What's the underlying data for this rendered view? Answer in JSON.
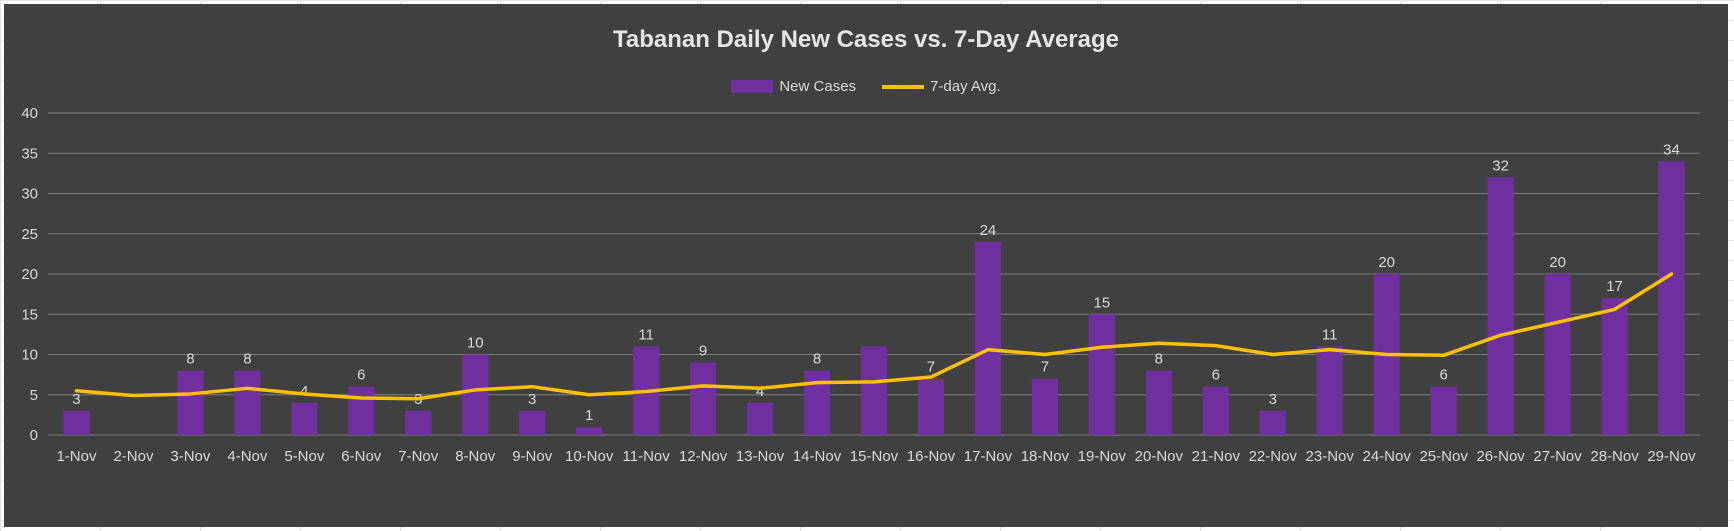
{
  "chart_data": {
    "type": "bar",
    "title": "Tabanan Daily New Cases vs. 7-Day Average",
    "categories": [
      "1-Nov",
      "2-Nov",
      "3-Nov",
      "4-Nov",
      "5-Nov",
      "6-Nov",
      "7-Nov",
      "8-Nov",
      "9-Nov",
      "10-Nov",
      "11-Nov",
      "12-Nov",
      "13-Nov",
      "14-Nov",
      "15-Nov",
      "16-Nov",
      "17-Nov",
      "18-Nov",
      "19-Nov",
      "20-Nov",
      "21-Nov",
      "22-Nov",
      "23-Nov",
      "24-Nov",
      "25-Nov",
      "26-Nov",
      "27-Nov",
      "28-Nov",
      "29-Nov"
    ],
    "series": [
      {
        "name": "New Cases",
        "type": "bar",
        "color": "#7030a0",
        "values": [
          3,
          0,
          8,
          8,
          4,
          6,
          3,
          10,
          3,
          1,
          11,
          9,
          4,
          8,
          11,
          7,
          24,
          7,
          15,
          8,
          6,
          3,
          11,
          20,
          6,
          32,
          20,
          17,
          34
        ],
        "labels": [
          "3",
          "",
          "8",
          "8",
          "4",
          "6",
          "3",
          "10",
          "3",
          "1",
          "11",
          "9",
          "4",
          "8",
          "",
          "7",
          "24",
          "7",
          "15",
          "8",
          "6",
          "3",
          "11",
          "20",
          "6",
          "32",
          "20",
          "17",
          "34"
        ]
      },
      {
        "name": "7-day Avg.",
        "type": "line",
        "color": "#ffc000",
        "values": [
          5.5,
          4.9,
          5.1,
          5.8,
          5.1,
          4.6,
          4.5,
          5.6,
          6.0,
          5.0,
          5.4,
          6.1,
          5.8,
          6.5,
          6.6,
          7.2,
          10.6,
          10.0,
          10.9,
          11.4,
          11.1,
          10.0,
          10.6,
          10.0,
          9.9,
          12.4,
          14.0,
          15.6,
          20.0
        ]
      }
    ],
    "ylim": [
      0,
      40
    ],
    "yticks": [
      0,
      5,
      10,
      15,
      20,
      25,
      30,
      35,
      40
    ],
    "grid": true,
    "legend": "top-center",
    "xlabel": "",
    "ylabel": ""
  }
}
